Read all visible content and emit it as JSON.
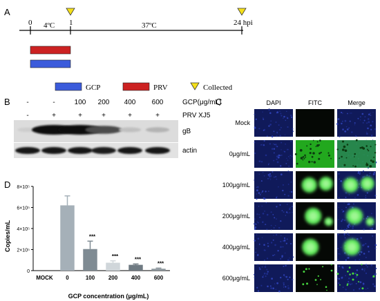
{
  "panel_a": {
    "letter": "A",
    "tick_0": "0",
    "tick_1": "1",
    "tick_24": "24 hpi",
    "temp_low": "4ºC",
    "temp_high": "37ºC",
    "legend_gcp": "GCP",
    "legend_prv": "PRV",
    "legend_collected": "Collected",
    "colors": {
      "gcp": "#3b5bdb",
      "prv": "#cc2222",
      "collected": "#f5e01a"
    }
  },
  "panel_b": {
    "letter": "B",
    "gcp_row": [
      "-",
      "-",
      "100",
      "200",
      "400",
      "600"
    ],
    "gcp_label": "GCP(μg/mL)",
    "prv_row": [
      "-",
      "+",
      "+",
      "+",
      "+",
      "+"
    ],
    "prv_label": "PRV XJ5",
    "band_gb": "gB",
    "band_actin": "actin",
    "gb_intensity": [
      0.05,
      1.0,
      1.0,
      0.7,
      0.12,
      0.18
    ],
    "actin_intensity": [
      0.95,
      0.95,
      0.95,
      0.92,
      0.95,
      0.95
    ]
  },
  "panel_c": {
    "letter": "C",
    "col_headers": [
      "DAPI",
      "FITC",
      "Merge"
    ],
    "row_labels": [
      "Mock",
      "0μg/mL",
      "100μg/mL",
      "200μg/mL",
      "400μg/mL",
      "600μg/mL"
    ]
  },
  "panel_d": {
    "letter": "D",
    "chart_data": {
      "type": "bar",
      "categories": [
        "MOCK",
        "0",
        "100",
        "200",
        "400",
        "600"
      ],
      "values": [
        0,
        620000,
        205000,
        75000,
        55000,
        18000
      ],
      "errors": [
        0,
        90000,
        75000,
        18000,
        8000,
        6000
      ],
      "significance": [
        "",
        "",
        "***",
        "***",
        "***",
        "***"
      ],
      "ylabel": "Copies/mL",
      "xlabel": "GCP concentration (μg/mL)",
      "ylim": [
        0,
        800000
      ],
      "yticks": [
        0,
        200000,
        400000,
        600000,
        800000
      ],
      "ytick_labels": [
        "0",
        "2×10⁵",
        "4×10⁵",
        "6×10⁵",
        "8×10⁵"
      ],
      "bar_colors": [
        "#a5b0b8",
        "#a5b0b8",
        "#7f8b93",
        "#d0d6da",
        "#6f7a82",
        "#8d979e"
      ]
    }
  }
}
